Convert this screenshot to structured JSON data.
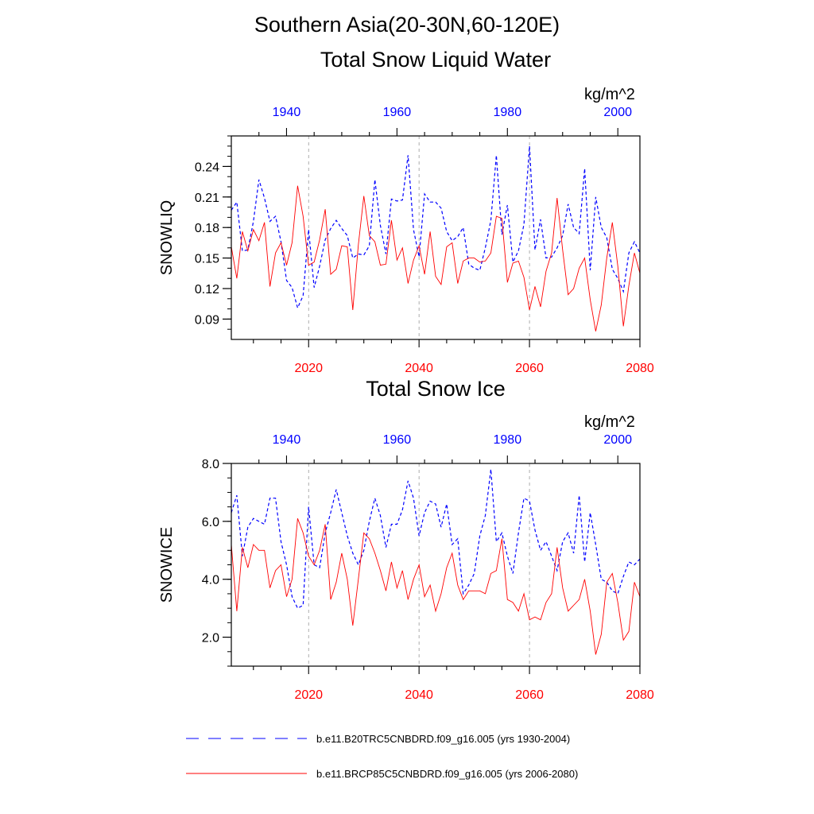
{
  "titles": {
    "main": "Southern Asia(20-30N,60-120E)",
    "panel1": "Total Snow Liquid Water",
    "panel2": "Total Snow Ice"
  },
  "legend": {
    "items": [
      {
        "label": "b.e11.B20TRC5CNBDRD.f09_g16.005 (yrs 1930-2004)",
        "color": "#0000ff",
        "style": "dashed"
      },
      {
        "label": "b.e11.BRCP85C5CNBDRD.f09_g16.005 (yrs 2006-2080)",
        "color": "#ff0000",
        "style": "solid"
      }
    ]
  },
  "colors": {
    "historical": "#0000ff",
    "future": "#ff0000",
    "axis": "#000000",
    "grid": "#999999"
  },
  "chart_data": [
    {
      "type": "line",
      "title": "Total Snow Liquid Water",
      "ylabel": "SNOWLIQ",
      "units": "kg/m^2",
      "ylim": [
        0.07,
        0.27
      ],
      "yticks": [
        0.09,
        0.12,
        0.15,
        0.18,
        0.21,
        0.24
      ],
      "ytick_labels": [
        "0.09",
        "0.12",
        "0.15",
        "0.18",
        "0.21",
        "0.24"
      ],
      "bottom_axis": {
        "range": [
          2006,
          2080
        ],
        "ticks": [
          2020,
          2040,
          2060,
          2080
        ],
        "labels": [
          "2020",
          "2040",
          "2060",
          "2080"
        ],
        "color": "#ff0000"
      },
      "top_axis": {
        "range": [
          1930,
          2004
        ],
        "ticks": [
          1940,
          1960,
          1980,
          2000
        ],
        "labels": [
          "1940",
          "1960",
          "1980",
          "2000"
        ],
        "color": "#0000ff"
      },
      "grid_x": [
        2020,
        2040,
        2060
      ],
      "series": [
        {
          "name": "b.e11.B20TRC5CNBDRD.f09_g16.005 (yrs 1930-2004)",
          "start_year": 1930,
          "color": "#0000ff",
          "style": "dashed",
          "values": [
            0.197,
            0.205,
            0.157,
            0.158,
            0.186,
            0.227,
            0.209,
            0.186,
            0.191,
            0.166,
            0.128,
            0.121,
            0.101,
            0.113,
            0.178,
            0.121,
            0.142,
            0.168,
            0.179,
            0.187,
            0.179,
            0.172,
            0.15,
            0.154,
            0.153,
            0.162,
            0.227,
            0.182,
            0.154,
            0.208,
            0.206,
            0.207,
            0.251,
            0.178,
            0.151,
            0.213,
            0.205,
            0.205,
            0.199,
            0.176,
            0.167,
            0.171,
            0.18,
            0.144,
            0.14,
            0.138,
            0.16,
            0.187,
            0.251,
            0.173,
            0.202,
            0.146,
            0.157,
            0.183,
            0.26,
            0.158,
            0.188,
            0.15,
            0.151,
            0.16,
            0.172,
            0.203,
            0.18,
            0.174,
            0.238,
            0.138,
            0.21,
            0.18,
            0.17,
            0.139,
            0.13,
            0.117,
            0.155,
            0.166,
            0.155
          ]
        },
        {
          "name": "b.e11.BRCP85C5CNBDRD.f09_g16.005 (yrs 2006-2080)",
          "start_year": 2006,
          "color": "#ff0000",
          "style": "solid",
          "values": [
            0.161,
            0.13,
            0.176,
            0.157,
            0.178,
            0.167,
            0.185,
            0.122,
            0.155,
            0.165,
            0.143,
            0.165,
            0.221,
            0.191,
            0.143,
            0.146,
            0.168,
            0.198,
            0.134,
            0.139,
            0.162,
            0.161,
            0.099,
            0.163,
            0.211,
            0.172,
            0.166,
            0.143,
            0.144,
            0.187,
            0.148,
            0.16,
            0.125,
            0.148,
            0.162,
            0.134,
            0.176,
            0.132,
            0.124,
            0.161,
            0.165,
            0.125,
            0.147,
            0.15,
            0.15,
            0.146,
            0.147,
            0.155,
            0.191,
            0.189,
            0.126,
            0.145,
            0.147,
            0.131,
            0.099,
            0.122,
            0.102,
            0.137,
            0.155,
            0.209,
            0.158,
            0.114,
            0.12,
            0.14,
            0.15,
            0.109,
            0.078,
            0.104,
            0.15,
            0.185,
            0.142,
            0.083,
            0.123,
            0.155,
            0.135
          ]
        }
      ]
    },
    {
      "type": "line",
      "title": "Total Snow Ice",
      "ylabel": "SNOWICE",
      "units": "kg/m^2",
      "ylim": [
        1.0,
        8.0
      ],
      "yticks": [
        2.0,
        4.0,
        6.0,
        8.0
      ],
      "ytick_labels": [
        "2.0",
        "4.0",
        "6.0",
        "8.0"
      ],
      "bottom_axis": {
        "range": [
          2006,
          2080
        ],
        "ticks": [
          2020,
          2040,
          2060,
          2080
        ],
        "labels": [
          "2020",
          "2040",
          "2060",
          "2080"
        ],
        "color": "#ff0000"
      },
      "top_axis": {
        "range": [
          1930,
          2004
        ],
        "ticks": [
          1940,
          1960,
          1980,
          2000
        ],
        "labels": [
          "1940",
          "1960",
          "1980",
          "2000"
        ],
        "color": "#0000ff"
      },
      "grid_x": [
        2020,
        2040,
        2060
      ],
      "series": [
        {
          "name": "b.e11.B20TRC5CNBDRD.f09_g16.005 (yrs 1930-2004)",
          "start_year": 1930,
          "color": "#0000ff",
          "style": "dashed",
          "values": [
            6.3,
            6.9,
            4.8,
            5.8,
            6.1,
            6.0,
            5.9,
            6.8,
            6.8,
            5.3,
            4.5,
            3.4,
            3.0,
            3.1,
            6.5,
            4.5,
            4.4,
            5.6,
            6.3,
            7.1,
            6.3,
            5.5,
            4.9,
            4.5,
            5.0,
            6.0,
            6.8,
            6.2,
            5.1,
            5.9,
            5.9,
            6.4,
            7.4,
            6.8,
            5.5,
            6.3,
            6.7,
            6.6,
            5.8,
            6.6,
            5.2,
            5.4,
            3.5,
            3.8,
            4.2,
            5.5,
            6.2,
            7.8,
            5.3,
            5.6,
            4.8,
            4.2,
            5.6,
            6.8,
            6.7,
            5.7,
            5.0,
            5.3,
            4.8,
            4.3,
            5.3,
            5.6,
            4.9,
            6.9,
            4.6,
            6.3,
            5.2,
            4.0,
            3.9,
            3.6,
            3.5,
            4.1,
            4.6,
            4.5,
            4.7
          ]
        },
        {
          "name": "b.e11.BRCP85C5CNBDRD.f09_g16.005 (yrs 2006-2080)",
          "start_year": 2006,
          "color": "#ff0000",
          "style": "solid",
          "values": [
            5.2,
            2.9,
            5.1,
            4.4,
            5.2,
            5.0,
            5.0,
            3.7,
            4.3,
            4.5,
            3.4,
            4.0,
            6.1,
            5.6,
            4.8,
            4.5,
            5.0,
            5.9,
            3.3,
            3.9,
            4.9,
            4.0,
            2.4,
            4.0,
            5.6,
            5.4,
            4.9,
            4.3,
            3.6,
            4.6,
            3.7,
            4.3,
            3.3,
            4.0,
            4.5,
            3.4,
            3.8,
            2.9,
            3.5,
            4.4,
            4.9,
            3.8,
            3.3,
            3.6,
            3.6,
            3.6,
            3.5,
            4.2,
            4.3,
            5.4,
            3.3,
            3.2,
            2.9,
            3.5,
            2.6,
            2.7,
            2.6,
            3.2,
            3.5,
            5.1,
            3.7,
            2.9,
            3.1,
            3.3,
            4.0,
            2.9,
            1.4,
            2.1,
            3.9,
            4.2,
            3.2,
            1.9,
            2.2,
            3.9,
            3.4
          ]
        }
      ]
    }
  ]
}
